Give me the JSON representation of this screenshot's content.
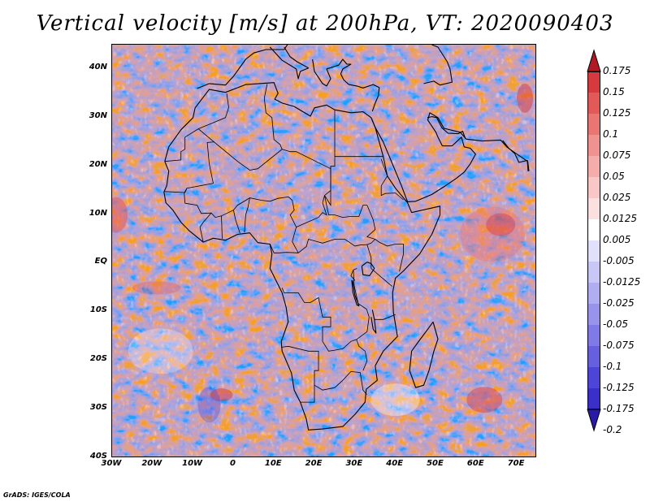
{
  "title": "Vertical velocity [m/s] at 200hPa, VT: 2020090403",
  "credit": "GrADS: IGES/COLA",
  "map": {
    "projection": "lat-lon",
    "region": "Africa",
    "lon_range": [
      -30,
      75
    ],
    "lat_range": [
      -40,
      45
    ],
    "lat_labels": [
      {
        "value": 40,
        "text": "40N"
      },
      {
        "value": 30,
        "text": "30N"
      },
      {
        "value": 20,
        "text": "20N"
      },
      {
        "value": 10,
        "text": "10N"
      },
      {
        "value": 0,
        "text": "EQ"
      },
      {
        "value": -10,
        "text": "10S"
      },
      {
        "value": -20,
        "text": "20S"
      },
      {
        "value": -30,
        "text": "30S"
      },
      {
        "value": -40,
        "text": "40S"
      }
    ],
    "lon_labels": [
      {
        "value": -30,
        "text": "30W"
      },
      {
        "value": -20,
        "text": "20W"
      },
      {
        "value": -10,
        "text": "10W"
      },
      {
        "value": 0,
        "text": "0"
      },
      {
        "value": 10,
        "text": "10E"
      },
      {
        "value": 20,
        "text": "20E"
      },
      {
        "value": 30,
        "text": "30E"
      },
      {
        "value": 40,
        "text": "40E"
      },
      {
        "value": 50,
        "text": "50E"
      },
      {
        "value": 60,
        "text": "60E"
      },
      {
        "value": 70,
        "text": "70E"
      }
    ]
  },
  "colorbar": {
    "top_arrow_color": "#b01a24",
    "bottom_arrow_color": "#2a1aa8",
    "levels": [
      {
        "label": "0.175",
        "color": "#c0232c"
      },
      {
        "label": "0.15",
        "color": "#d63a3f"
      },
      {
        "label": "0.125",
        "color": "#e2595a"
      },
      {
        "label": "0.1",
        "color": "#ea7674"
      },
      {
        "label": "0.075",
        "color": "#f09290"
      },
      {
        "label": "0.05",
        "color": "#f5adab"
      },
      {
        "label": "0.025",
        "color": "#f9c7c5"
      },
      {
        "label": "0.0125",
        "color": "#fce0df"
      },
      {
        "label": "0.005",
        "color": "#ffffff"
      },
      {
        "label": "-0.005",
        "color": "#e2e1fb"
      },
      {
        "label": "-0.0125",
        "color": "#c9c7f6"
      },
      {
        "label": "-0.025",
        "color": "#b0adf1"
      },
      {
        "label": "-0.05",
        "color": "#9894ec"
      },
      {
        "label": "-0.075",
        "color": "#7f7ae6"
      },
      {
        "label": "-0.1",
        "color": "#6660df"
      },
      {
        "label": "-0.125",
        "color": "#4d45d6"
      },
      {
        "label": "-0.175",
        "color": "#3a2fc8"
      },
      {
        "label": "-0.2",
        "color": "#2a1aa8"
      }
    ]
  }
}
